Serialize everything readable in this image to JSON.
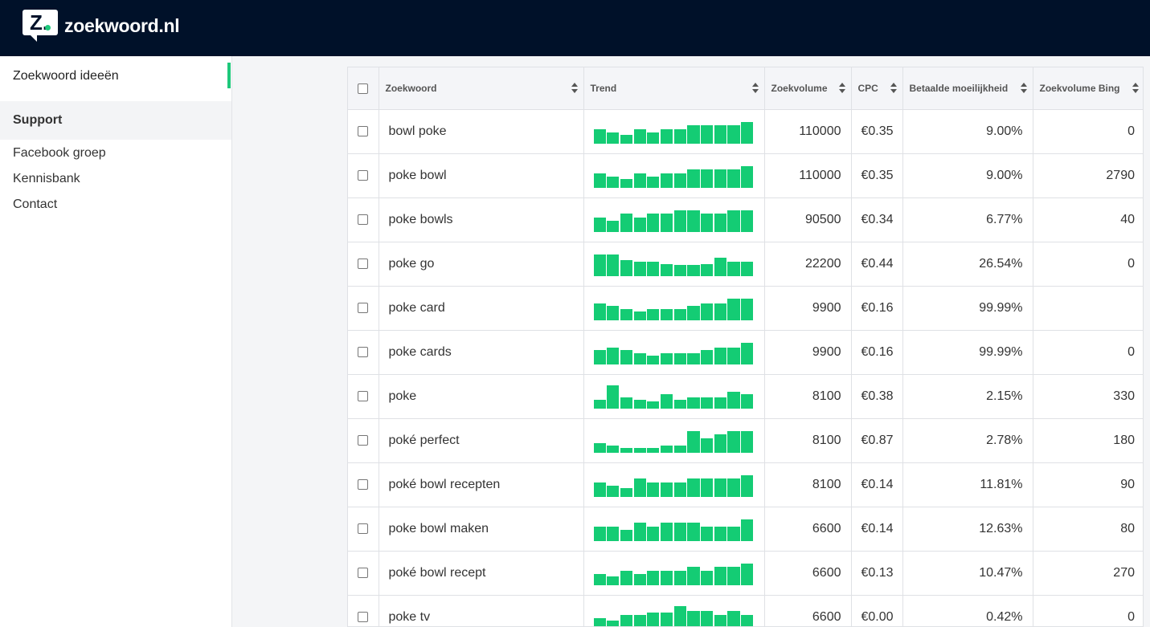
{
  "brand": {
    "logo_letter": "Z.",
    "name": "zoekwoord.nl",
    "accent_color": "#1ec87b",
    "header_color": "#001129"
  },
  "sidebar": {
    "active_item": "Zoekwoord ideeën",
    "support_heading": "Support",
    "links": [
      "Facebook groep",
      "Kennisbank",
      "Contact"
    ]
  },
  "table": {
    "columns": [
      "Zoekwoord",
      "Trend",
      "Zoekvolume",
      "CPC",
      "Betaalde moeilijkheid",
      "Zoekvolume Bing"
    ],
    "trend_color": "#14cc74",
    "rows": [
      {
        "keyword": "bowl poke",
        "volume": "110000",
        "cpc": "€0.35",
        "difficulty": "9.00%",
        "bing": "0",
        "trend": [
          0.6,
          0.45,
          0.35,
          0.6,
          0.45,
          0.6,
          0.6,
          0.75,
          0.75,
          0.75,
          0.75,
          0.9
        ]
      },
      {
        "keyword": "poke bowl",
        "volume": "110000",
        "cpc": "€0.35",
        "difficulty": "9.00%",
        "bing": "2790",
        "trend": [
          0.6,
          0.45,
          0.35,
          0.6,
          0.45,
          0.6,
          0.6,
          0.75,
          0.75,
          0.75,
          0.75,
          0.9
        ]
      },
      {
        "keyword": "poke bowls",
        "volume": "90500",
        "cpc": "€0.34",
        "difficulty": "6.77%",
        "bing": "40",
        "trend": [
          0.6,
          0.45,
          0.75,
          0.6,
          0.75,
          0.75,
          0.9,
          0.9,
          0.75,
          0.75,
          0.9,
          0.9
        ]
      },
      {
        "keyword": "poke go",
        "volume": "22200",
        "cpc": "€0.44",
        "difficulty": "26.54%",
        "bing": "0",
        "trend": [
          0.9,
          0.9,
          0.65,
          0.6,
          0.6,
          0.5,
          0.45,
          0.45,
          0.5,
          0.75,
          0.6,
          0.6
        ]
      },
      {
        "keyword": "poke card",
        "volume": "9900",
        "cpc": "€0.16",
        "difficulty": "99.99%",
        "bing": "",
        "trend": [
          0.7,
          0.6,
          0.45,
          0.35,
          0.45,
          0.45,
          0.45,
          0.6,
          0.7,
          0.7,
          0.9,
          0.9
        ]
      },
      {
        "keyword": "poke cards",
        "volume": "9900",
        "cpc": "€0.16",
        "difficulty": "99.99%",
        "bing": "0",
        "trend": [
          0.6,
          0.7,
          0.6,
          0.45,
          0.35,
          0.45,
          0.45,
          0.45,
          0.6,
          0.7,
          0.7,
          0.9
        ]
      },
      {
        "keyword": "poke",
        "volume": "8100",
        "cpc": "€0.38",
        "difficulty": "2.15%",
        "bing": "330",
        "trend": [
          0.35,
          0.95,
          0.45,
          0.35,
          0.3,
          0.6,
          0.35,
          0.45,
          0.45,
          0.45,
          0.7,
          0.6
        ]
      },
      {
        "keyword": "poké perfect",
        "volume": "8100",
        "cpc": "€0.87",
        "difficulty": "2.78%",
        "bing": "180",
        "trend": [
          0.4,
          0.3,
          0.2,
          0.2,
          0.2,
          0.3,
          0.3,
          0.9,
          0.6,
          0.75,
          0.9,
          0.9
        ]
      },
      {
        "keyword": "poké bowl recepten",
        "volume": "8100",
        "cpc": "€0.14",
        "difficulty": "11.81%",
        "bing": "90",
        "trend": [
          0.6,
          0.45,
          0.35,
          0.75,
          0.6,
          0.6,
          0.6,
          0.75,
          0.75,
          0.75,
          0.75,
          0.9
        ]
      },
      {
        "keyword": "poke bowl maken",
        "volume": "6600",
        "cpc": "€0.14",
        "difficulty": "12.63%",
        "bing": "80",
        "trend": [
          0.6,
          0.6,
          0.45,
          0.75,
          0.6,
          0.75,
          0.75,
          0.75,
          0.6,
          0.6,
          0.6,
          0.9
        ]
      },
      {
        "keyword": "poké bowl recept",
        "volume": "6600",
        "cpc": "€0.13",
        "difficulty": "10.47%",
        "bing": "270",
        "trend": [
          0.45,
          0.35,
          0.6,
          0.45,
          0.6,
          0.6,
          0.6,
          0.75,
          0.6,
          0.75,
          0.75,
          0.9
        ]
      },
      {
        "keyword": "poke tv",
        "volume": "6600",
        "cpc": "€0.00",
        "difficulty": "0.42%",
        "bing": "0",
        "trend": [
          0.45,
          0.35,
          0.6,
          0.6,
          0.7,
          0.7,
          0.95,
          0.75,
          0.75,
          0.6,
          0.75,
          0.6
        ]
      }
    ]
  }
}
